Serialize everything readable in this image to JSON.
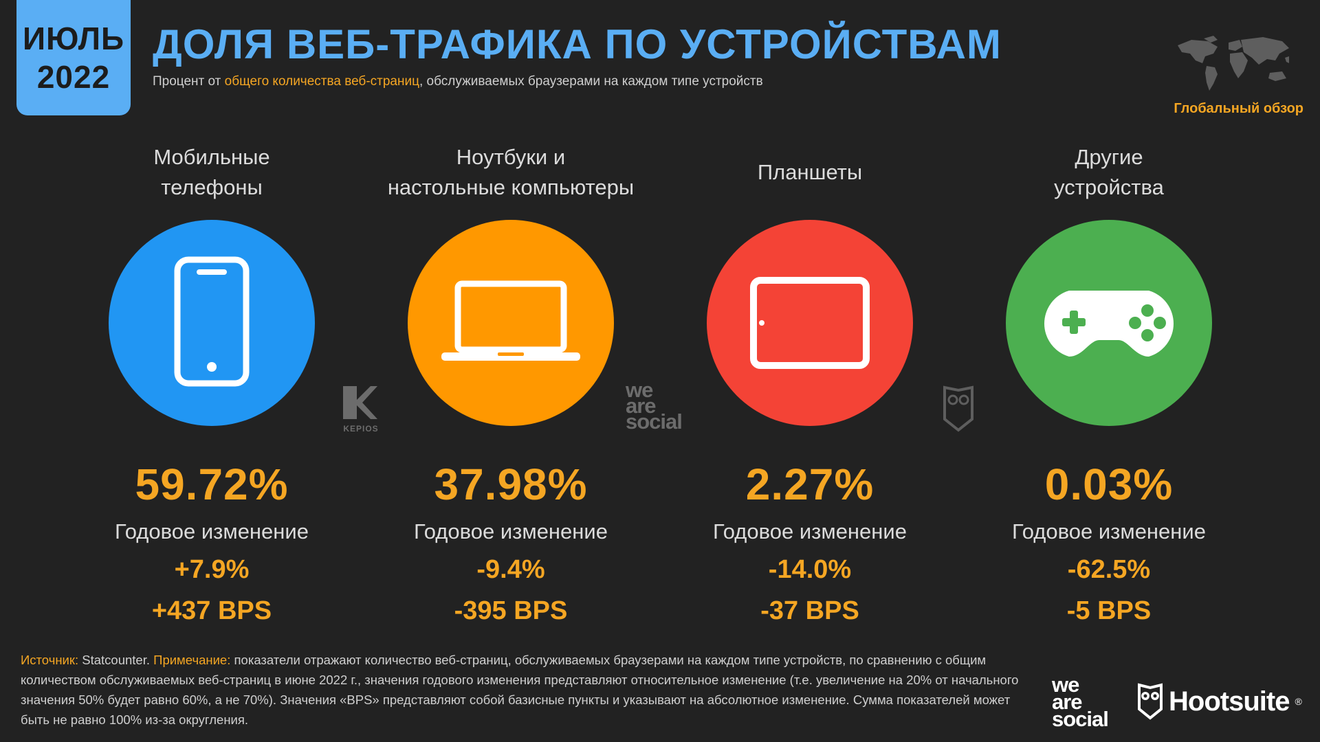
{
  "badge": {
    "month": "ИЮЛЬ",
    "year": "2022"
  },
  "header": {
    "title": "ДОЛЯ ВЕБ-ТРАФИКА ПО УСТРОЙСТВАМ",
    "subtitle_before": "Процент от ",
    "subtitle_highlight": "общего количества веб-страниц",
    "subtitle_after": ", обслуживаемых браузерами на каждом типе устройств",
    "global_label": "Глобальный обзор"
  },
  "devices": [
    {
      "label": "Мобильные\nтелефоны",
      "share": "59.72%",
      "change_label": "Годовое изменение",
      "change_pct": "+7.9%",
      "change_bps": "+437 BPS",
      "color": "#2196f3",
      "icon": "mobile-phone-icon"
    },
    {
      "label": "Ноутбуки и\nнастольные компьютеры",
      "share": "37.98%",
      "change_label": "Годовое изменение",
      "change_pct": "-9.4%",
      "change_bps": "-395 BPS",
      "color": "#ff9800",
      "icon": "laptop-icon"
    },
    {
      "label": "Планшеты",
      "share": "2.27%",
      "change_label": "Годовое изменение",
      "change_pct": "-14.0%",
      "change_bps": "-37 BPS",
      "color": "#f44336",
      "icon": "tablet-icon"
    },
    {
      "label": "Другие\nустройства",
      "share": "0.03%",
      "change_label": "Годовое изменение",
      "change_pct": "-62.5%",
      "change_bps": "-5 BPS",
      "color": "#4caf50",
      "icon": "gamepad-icon"
    }
  ],
  "watermarks": {
    "kepios": "KEPIOS",
    "we": "we",
    "are": "are",
    "social": "social"
  },
  "footnote": {
    "source_label": "Источник:",
    "source_text": " Statcounter. ",
    "note_label": "Примечание:",
    "note_text": " показатели отражают количество веб-страниц, обслуживаемых браузерами на каждом типе устройств, по сравнению с общим количеством обслуживаемых веб-страниц в июне 2022 г., значения годового изменения представляют относительное изменение (т.е. увеличение на 20% от начального значения 50% будет равно 60%, а не 70%). Значения «BPS» представляют собой базисные пункты и указывают на абсолютное изменение. Сумма показателей может быть не равно 100% из-за округления."
  },
  "logos": {
    "we": "we",
    "are": "are",
    "social": "social",
    "hootsuite": "Hootsuite",
    "reg": "®"
  },
  "colors": {
    "accent_blue": "#5aaef4",
    "accent_orange": "#f5a623",
    "background": "#222222"
  }
}
